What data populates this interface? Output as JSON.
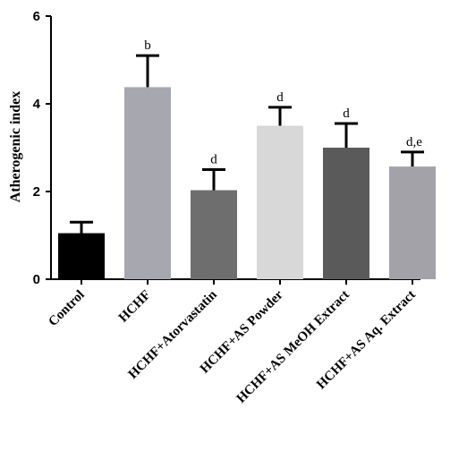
{
  "chart_data": {
    "type": "bar",
    "categories": [
      "Control",
      "HCHF",
      "HCHF+Atorvastatin",
      "HCHF+AS Powder",
      "HCHF+AS MeOH Extract",
      "HCHF+AS Aq. Extract"
    ],
    "values": [
      1.05,
      4.38,
      2.03,
      3.5,
      3.0,
      2.57
    ],
    "errors": [
      0.25,
      0.72,
      0.47,
      0.42,
      0.55,
      0.33
    ],
    "significance": [
      "",
      "b",
      "d",
      "d",
      "d",
      "d,e"
    ],
    "bar_colors": [
      "#000000",
      "#a7a7af",
      "#6e6e6e",
      "#d8d8d8",
      "#5a5a5a",
      "#a2a2a8"
    ],
    "ylabel": "Atherogenic index",
    "xlabel": "",
    "title": "",
    "ylim": [
      0,
      6
    ],
    "yticks": [
      "0",
      "2",
      "4",
      "6"
    ],
    "grid": false,
    "legend": "none"
  }
}
